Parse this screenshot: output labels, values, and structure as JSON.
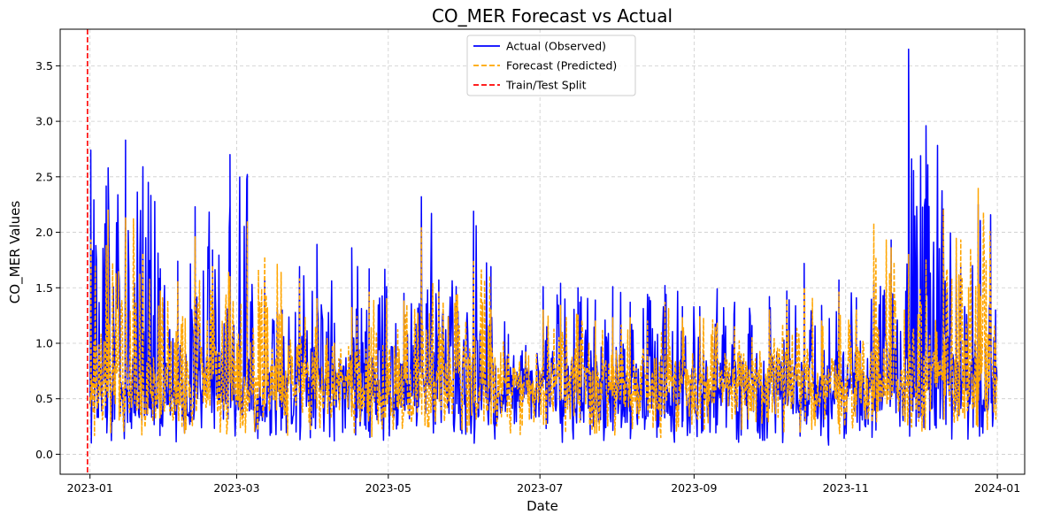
{
  "chart_data": {
    "type": "line",
    "title": "CO_MER Forecast vs Actual",
    "xlabel": "Date",
    "ylabel": "CO_MER Values",
    "x_range": [
      "2022-12-20",
      "2024-01-12"
    ],
    "ylim": [
      -0.18,
      3.83
    ],
    "x_ticks": [
      {
        "date": "2023-01-01",
        "label": "2023-01"
      },
      {
        "date": "2023-03-01",
        "label": "2023-03"
      },
      {
        "date": "2023-05-01",
        "label": "2023-05"
      },
      {
        "date": "2023-07-01",
        "label": "2023-07"
      },
      {
        "date": "2023-09-01",
        "label": "2023-09"
      },
      {
        "date": "2023-11-01",
        "label": "2023-11"
      },
      {
        "date": "2024-01-01",
        "label": "2024-01"
      }
    ],
    "y_ticks": [
      0.0,
      0.5,
      1.0,
      1.5,
      2.0,
      2.5,
      3.0,
      3.5
    ],
    "y_tick_labels": [
      "0.0",
      "0.5",
      "1.0",
      "1.5",
      "2.0",
      "2.5",
      "3.0",
      "3.5"
    ],
    "grid": true,
    "legend_position": "top-center",
    "series": [
      {
        "name": "Actual (Observed)",
        "color": "#0000ff",
        "style": "solid",
        "x": [
          "2023-01-01",
          "2023-01-08",
          "2023-01-15",
          "2023-01-22",
          "2023-01-29",
          "2023-02-05",
          "2023-02-12",
          "2023-02-19",
          "2023-02-26",
          "2023-03-05",
          "2023-03-12",
          "2023-03-19",
          "2023-03-26",
          "2023-04-02",
          "2023-04-09",
          "2023-04-16",
          "2023-04-23",
          "2023-04-30",
          "2023-05-07",
          "2023-05-14",
          "2023-05-21",
          "2023-05-28",
          "2023-06-04",
          "2023-06-11",
          "2023-06-18",
          "2023-06-25",
          "2023-07-02",
          "2023-07-09",
          "2023-07-16",
          "2023-07-23",
          "2023-07-30",
          "2023-08-06",
          "2023-08-13",
          "2023-08-20",
          "2023-08-27",
          "2023-09-03",
          "2023-09-10",
          "2023-09-17",
          "2023-09-24",
          "2023-10-01",
          "2023-10-08",
          "2023-10-15",
          "2023-10-22",
          "2023-10-29",
          "2023-11-05",
          "2023-11-12",
          "2023-11-19",
          "2023-11-26",
          "2023-12-03",
          "2023-12-10",
          "2023-12-17",
          "2023-12-24",
          "2023-12-31"
        ],
        "y": [
          2.74,
          2.58,
          2.83,
          2.59,
          1.67,
          1.74,
          2.23,
          1.84,
          2.7,
          2.52,
          1.57,
          1.3,
          1.69,
          1.89,
          1.18,
          1.86,
          1.67,
          1.51,
          1.45,
          2.32,
          1.57,
          1.51,
          2.19,
          1.69,
          1.08,
          0.98,
          1.51,
          1.54,
          1.5,
          1.39,
          1.51,
          1.37,
          1.44,
          1.52,
          1.33,
          1.33,
          1.49,
          1.37,
          1.16,
          1.42,
          1.47,
          1.72,
          1.34,
          1.57,
          1.41,
          1.55,
          1.93,
          3.65,
          2.96,
          2.21,
          1.7,
          2.25,
          1.3
        ]
      },
      {
        "name": "Forecast (Predicted)",
        "color": "#ffa500",
        "style": "dashed",
        "x": [
          "2023-01-01",
          "2023-01-08",
          "2023-01-15",
          "2023-01-22",
          "2023-01-29",
          "2023-02-05",
          "2023-02-12",
          "2023-02-19",
          "2023-02-26",
          "2023-03-05",
          "2023-03-12",
          "2023-03-19",
          "2023-03-26",
          "2023-04-02",
          "2023-04-09",
          "2023-04-16",
          "2023-04-23",
          "2023-04-30",
          "2023-05-07",
          "2023-05-14",
          "2023-05-21",
          "2023-05-28",
          "2023-06-04",
          "2023-06-11",
          "2023-06-18",
          "2023-06-25",
          "2023-07-02",
          "2023-07-09",
          "2023-07-16",
          "2023-07-23",
          "2023-07-30",
          "2023-08-06",
          "2023-08-13",
          "2023-08-20",
          "2023-08-27",
          "2023-09-03",
          "2023-09-10",
          "2023-09-17",
          "2023-09-24",
          "2023-10-01",
          "2023-10-08",
          "2023-10-15",
          "2023-10-22",
          "2023-10-29",
          "2023-11-05",
          "2023-11-12",
          "2023-11-19",
          "2023-11-26",
          "2023-12-03",
          "2023-12-10",
          "2023-12-17",
          "2023-12-24",
          "2023-12-31"
        ],
        "y": [
          1.93,
          2.2,
          2.13,
          1.81,
          1.47,
          1.56,
          1.96,
          1.7,
          1.6,
          2.1,
          1.78,
          1.26,
          1.58,
          1.4,
          1.0,
          1.32,
          1.46,
          1.4,
          1.38,
          2.04,
          1.47,
          1.44,
          1.75,
          1.3,
          0.9,
          0.92,
          1.3,
          1.34,
          1.26,
          1.2,
          1.23,
          1.23,
          1.2,
          1.37,
          1.23,
          1.24,
          1.18,
          1.15,
          1.05,
          1.3,
          1.4,
          1.5,
          1.2,
          1.46,
          1.3,
          2.08,
          1.86,
          1.8,
          1.75,
          2.21,
          1.93,
          2.4,
          1.0
        ]
      },
      {
        "name": "Train/Test Split",
        "color": "#ff0000",
        "style": "dashed",
        "x": [
          "2022-12-31"
        ]
      }
    ]
  }
}
